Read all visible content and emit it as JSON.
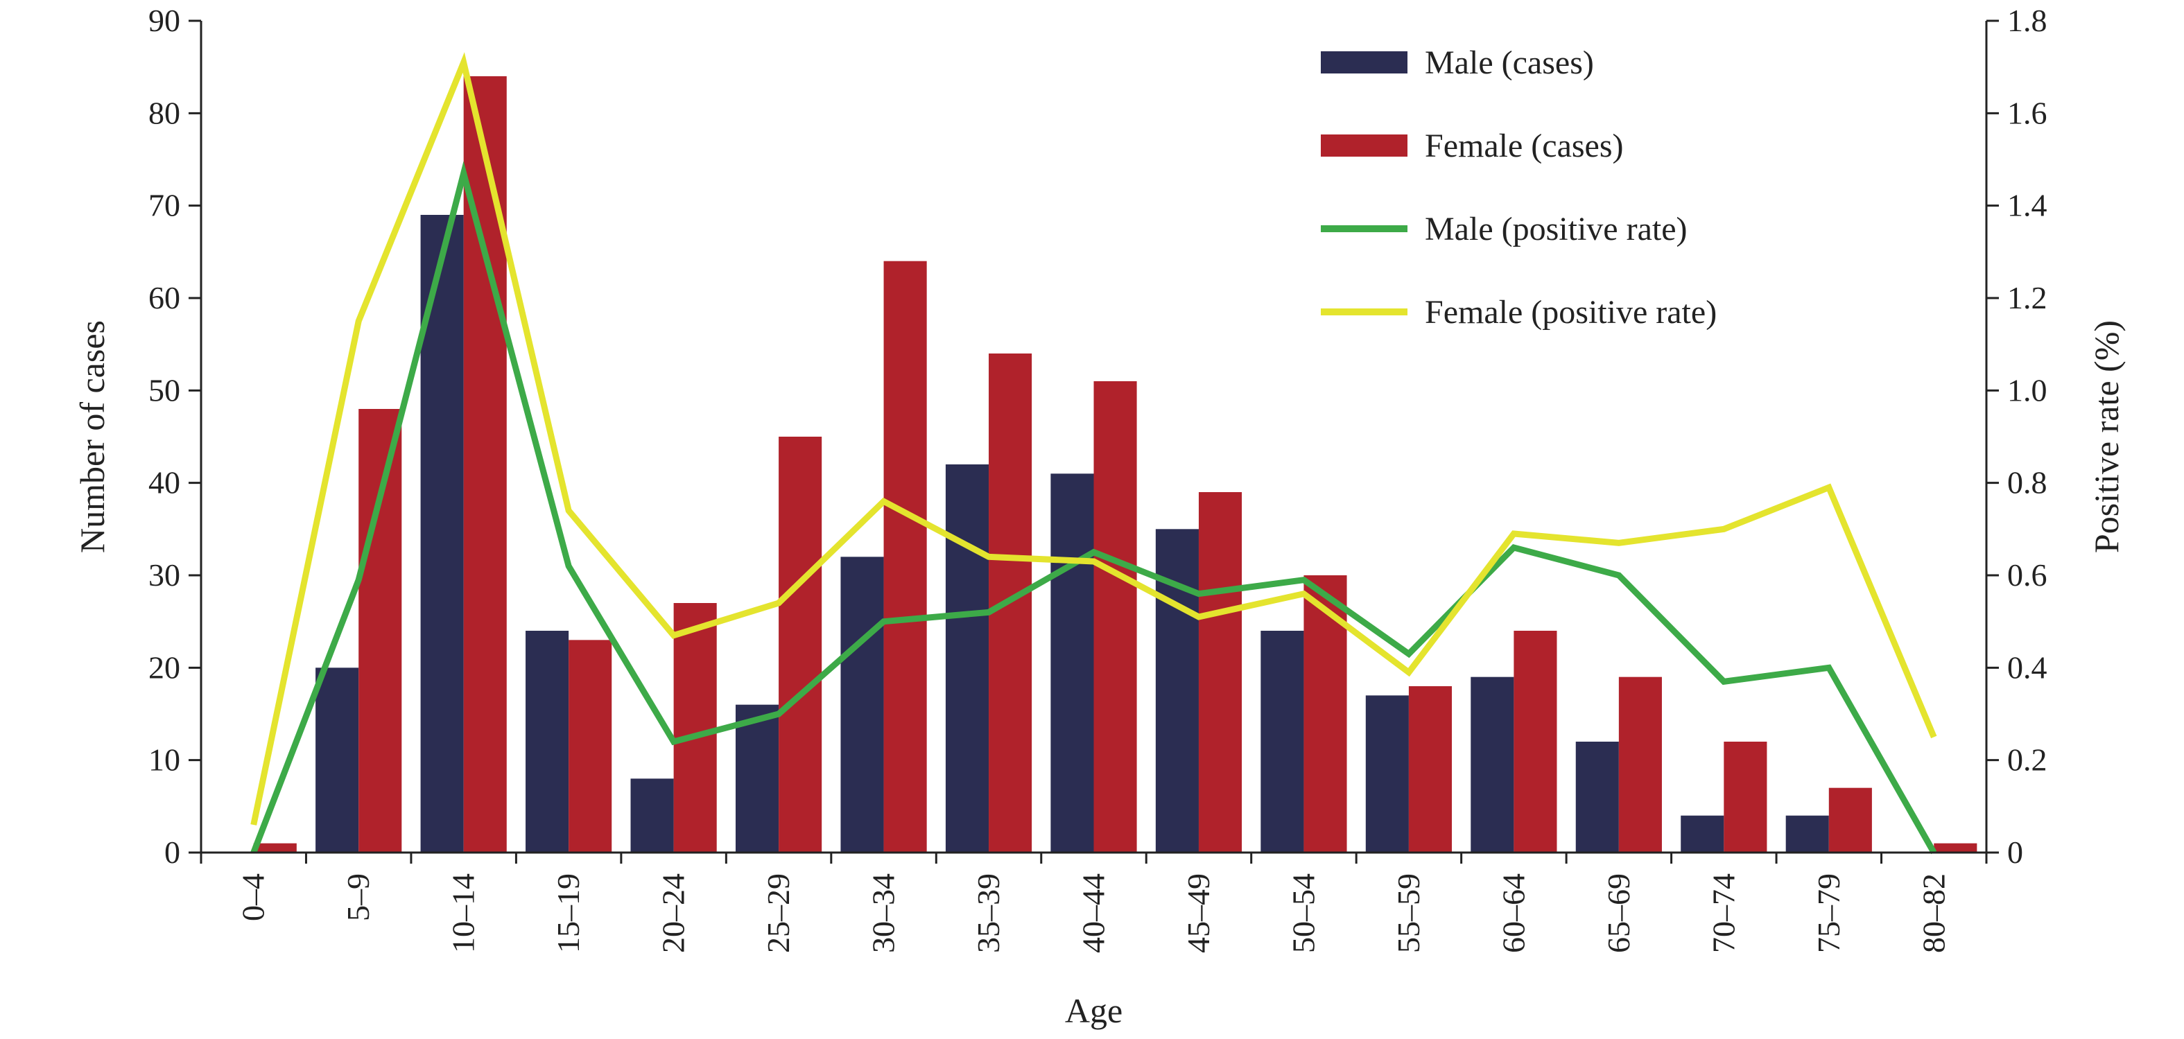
{
  "chart_data": {
    "type": "bar",
    "xlabel": "Age",
    "ylabel": "Number of cases",
    "y2label": "Positive rate (%)",
    "categories": [
      "0–4",
      "5–9",
      "10–14",
      "15–19",
      "20–24",
      "25–29",
      "30–34",
      "35–39",
      "40–44",
      "45–49",
      "50–54",
      "55–59",
      "60–64",
      "65–69",
      "70–74",
      "75–79",
      "80–82"
    ],
    "ylim": [
      0,
      90
    ],
    "yticks": [
      "0",
      "10",
      "20",
      "30",
      "40",
      "50",
      "60",
      "70",
      "80",
      "90"
    ],
    "y2lim": [
      0,
      1.8
    ],
    "y2ticks": [
      "0",
      "0.2",
      "0.4",
      "0.6",
      "0.8",
      "1.0",
      "1.2",
      "1.4",
      "1.6",
      "1.8"
    ],
    "legend_position": "top-right",
    "bar_series": [
      {
        "name": "Male (cases)",
        "color": "#2b2d52",
        "values": [
          0,
          20,
          69,
          24,
          8,
          16,
          32,
          42,
          41,
          35,
          24,
          17,
          19,
          12,
          4,
          4,
          0
        ]
      },
      {
        "name": "Female (cases)",
        "color": "#b0222b",
        "values": [
          1,
          48,
          84,
          23,
          27,
          45,
          64,
          54,
          51,
          39,
          30,
          18,
          24,
          19,
          12,
          7,
          1
        ]
      }
    ],
    "line_series": [
      {
        "name": "Male (positive rate)",
        "color": "#3daa48",
        "axis": "right",
        "values": [
          0.0,
          0.59,
          1.47,
          0.62,
          0.24,
          0.3,
          0.5,
          0.52,
          0.65,
          0.56,
          0.59,
          0.43,
          0.66,
          0.6,
          0.37,
          0.4,
          0.0
        ]
      },
      {
        "name": "Female (positive rate)",
        "color": "#e4e42e",
        "axis": "right",
        "values": [
          0.06,
          1.15,
          1.71,
          0.74,
          0.47,
          0.54,
          0.76,
          0.64,
          0.63,
          0.51,
          0.56,
          0.39,
          0.69,
          0.67,
          0.7,
          0.79,
          0.25
        ]
      }
    ]
  }
}
